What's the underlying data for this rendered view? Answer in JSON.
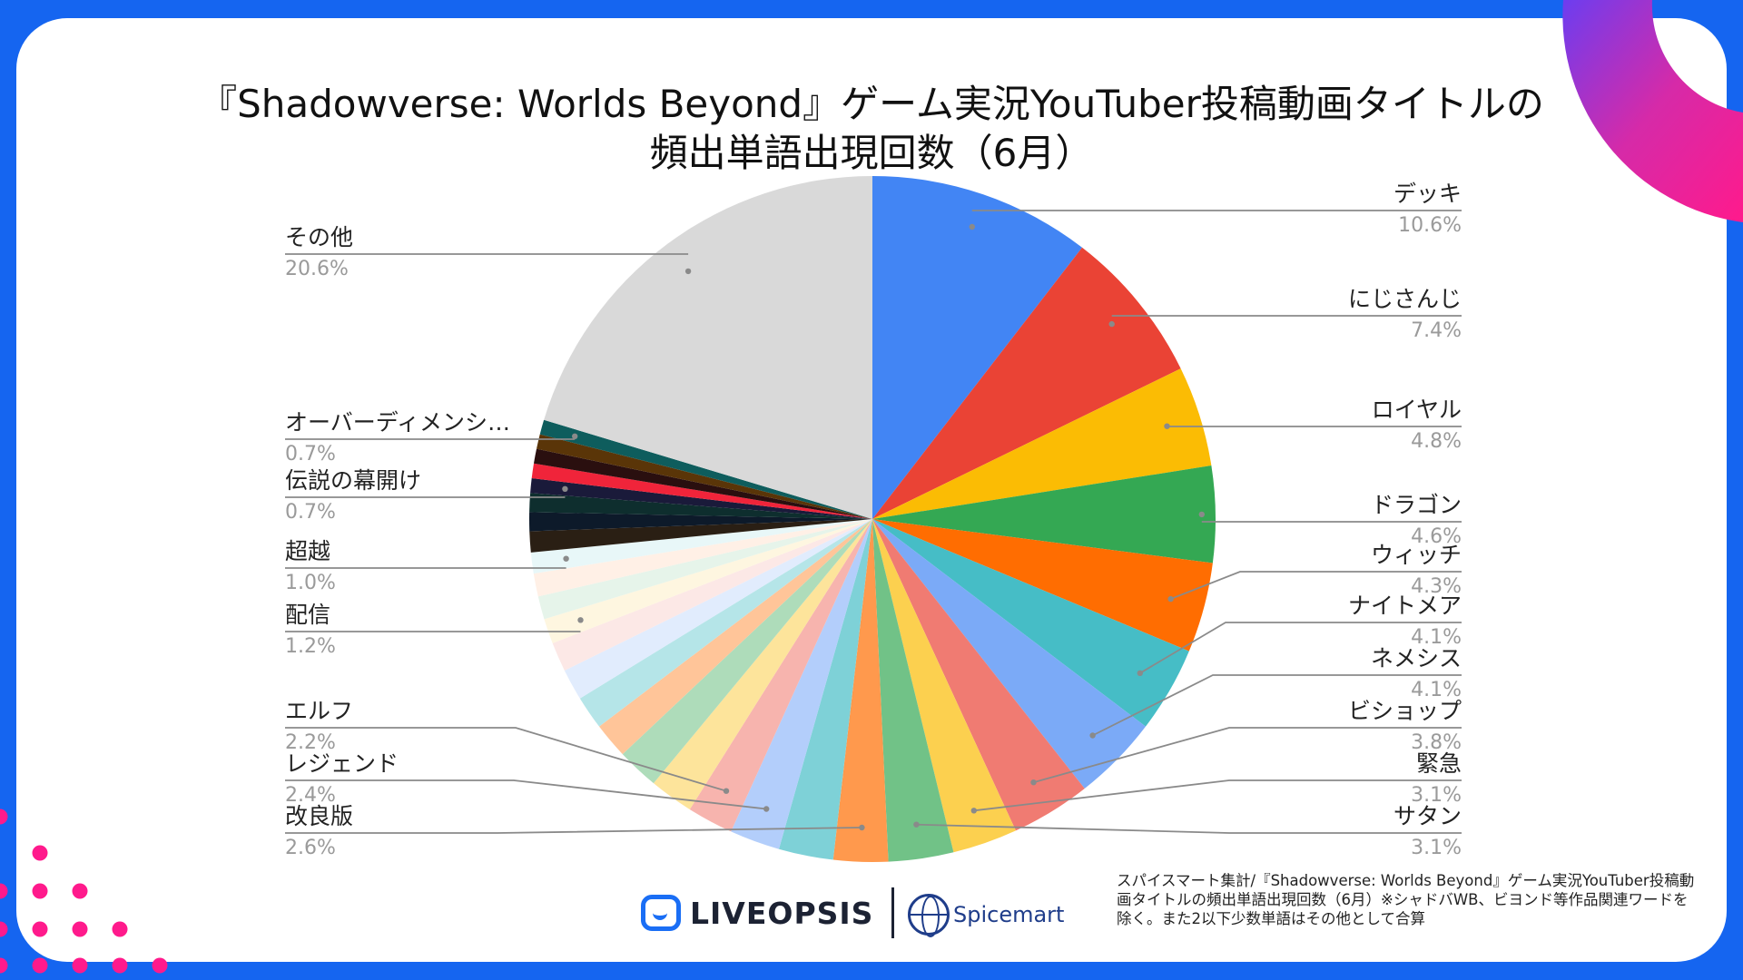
{
  "title": {
    "line1": "『Shadowverse: Worlds Beyond』ゲーム実況YouTuber投稿動画タイトルの",
    "line2": "頻出単語出現回数（6月）"
  },
  "colors": {
    "frame": "#1565f0",
    "card": "#ffffff",
    "accent_pink": "#ff1a8c",
    "accent_purple": "#6c3df0"
  },
  "chart_data": {
    "type": "pie",
    "start_angle": "12 o'clock",
    "direction": "clockwise",
    "slices": [
      {
        "label": "デッキ",
        "value": 10.6,
        "pct_label": "10.6%",
        "color": "#4285f4"
      },
      {
        "label": "にじさんじ",
        "value": 7.4,
        "pct_label": "7.4%",
        "color": "#ea4335"
      },
      {
        "label": "ロイヤル",
        "value": 4.8,
        "pct_label": "4.8%",
        "color": "#fbbc04"
      },
      {
        "label": "ドラゴン",
        "value": 4.6,
        "pct_label": "4.6%",
        "color": "#34a853"
      },
      {
        "label": "ウィッチ",
        "value": 4.3,
        "pct_label": "4.3%",
        "color": "#ff6d01"
      },
      {
        "label": "ナイトメア",
        "value": 4.1,
        "pct_label": "4.1%",
        "color": "#46bdc6"
      },
      {
        "label": "ネメシス",
        "value": 4.1,
        "pct_label": "4.1%",
        "color": "#7baaf7"
      },
      {
        "label": "ビショップ",
        "value": 3.8,
        "pct_label": "3.8%",
        "color": "#f07b72"
      },
      {
        "label": "緊急",
        "value": 3.1,
        "pct_label": "3.1%",
        "color": "#fcd04f"
      },
      {
        "label": "サタン",
        "value": 3.1,
        "pct_label": "3.1%",
        "color": "#71c287"
      },
      {
        "label": "改良版",
        "value": 2.6,
        "pct_label": "2.6%",
        "color": "#ff994d"
      },
      {
        "label": "",
        "value": 2.6,
        "pct_label": "",
        "color": "#7ed1d7"
      },
      {
        "label": "レジェンド",
        "value": 2.4,
        "pct_label": "2.4%",
        "color": "#b3cefb"
      },
      {
        "label": "エルフ",
        "value": 2.2,
        "pct_label": "2.2%",
        "color": "#f7b4ae"
      },
      {
        "label": "",
        "value": 2.1,
        "pct_label": "",
        "color": "#fde49b"
      },
      {
        "label": "",
        "value": 2.0,
        "pct_label": "",
        "color": "#aedcba"
      },
      {
        "label": "",
        "value": 1.7,
        "pct_label": "",
        "color": "#ffc599"
      },
      {
        "label": "",
        "value": 1.6,
        "pct_label": "",
        "color": "#b5e5e8"
      },
      {
        "label": "",
        "value": 1.5,
        "pct_label": "",
        "color": "#e1ecfd"
      },
      {
        "label": "",
        "value": 1.4,
        "pct_label": "",
        "color": "#fce8e6"
      },
      {
        "label": "配信",
        "value": 1.2,
        "pct_label": "1.2%",
        "color": "#fef6e0"
      },
      {
        "label": "",
        "value": 1.1,
        "pct_label": "",
        "color": "#e6f4ea"
      },
      {
        "label": "",
        "value": 1.1,
        "pct_label": "",
        "color": "#fff0e6"
      },
      {
        "label": "超越",
        "value": 1.0,
        "pct_label": "1.0%",
        "color": "#e8f7f8"
      },
      {
        "label": "",
        "value": 1.0,
        "pct_label": "",
        "color": "#2a1f14"
      },
      {
        "label": "",
        "value": 0.9,
        "pct_label": "",
        "color": "#0d1a2a"
      },
      {
        "label": "",
        "value": 0.9,
        "pct_label": "",
        "color": "#0e2e2e"
      },
      {
        "label": "伝説の幕開け",
        "value": 0.7,
        "pct_label": "0.7%",
        "color": "#1a1a3a"
      },
      {
        "label": "",
        "value": 0.7,
        "pct_label": "",
        "color": "#f0243a"
      },
      {
        "label": "",
        "value": 0.7,
        "pct_label": "",
        "color": "#2a0f0f"
      },
      {
        "label": "",
        "value": 0.7,
        "pct_label": "",
        "color": "#5a3508"
      },
      {
        "label": "オーバーディメンシ…",
        "value": 0.7,
        "pct_label": "0.7%",
        "color": "#0e5d5d"
      },
      {
        "label": "その他",
        "value": 20.6,
        "pct_label": "20.6%",
        "color": "#d9d9d9"
      }
    ]
  },
  "source_note": "スパイスマート集計/『Shadowverse: Worlds Beyond』ゲーム実況YouTuber投稿動画タイトルの頻出単語出現回数（6月）※シャドバWB、ビヨンド等作品関連ワードを除く。また2以下少数単語はその他として合算",
  "logos": {
    "liveopsis": "LIVEOPSIS",
    "spicemart": "Spicemart"
  }
}
